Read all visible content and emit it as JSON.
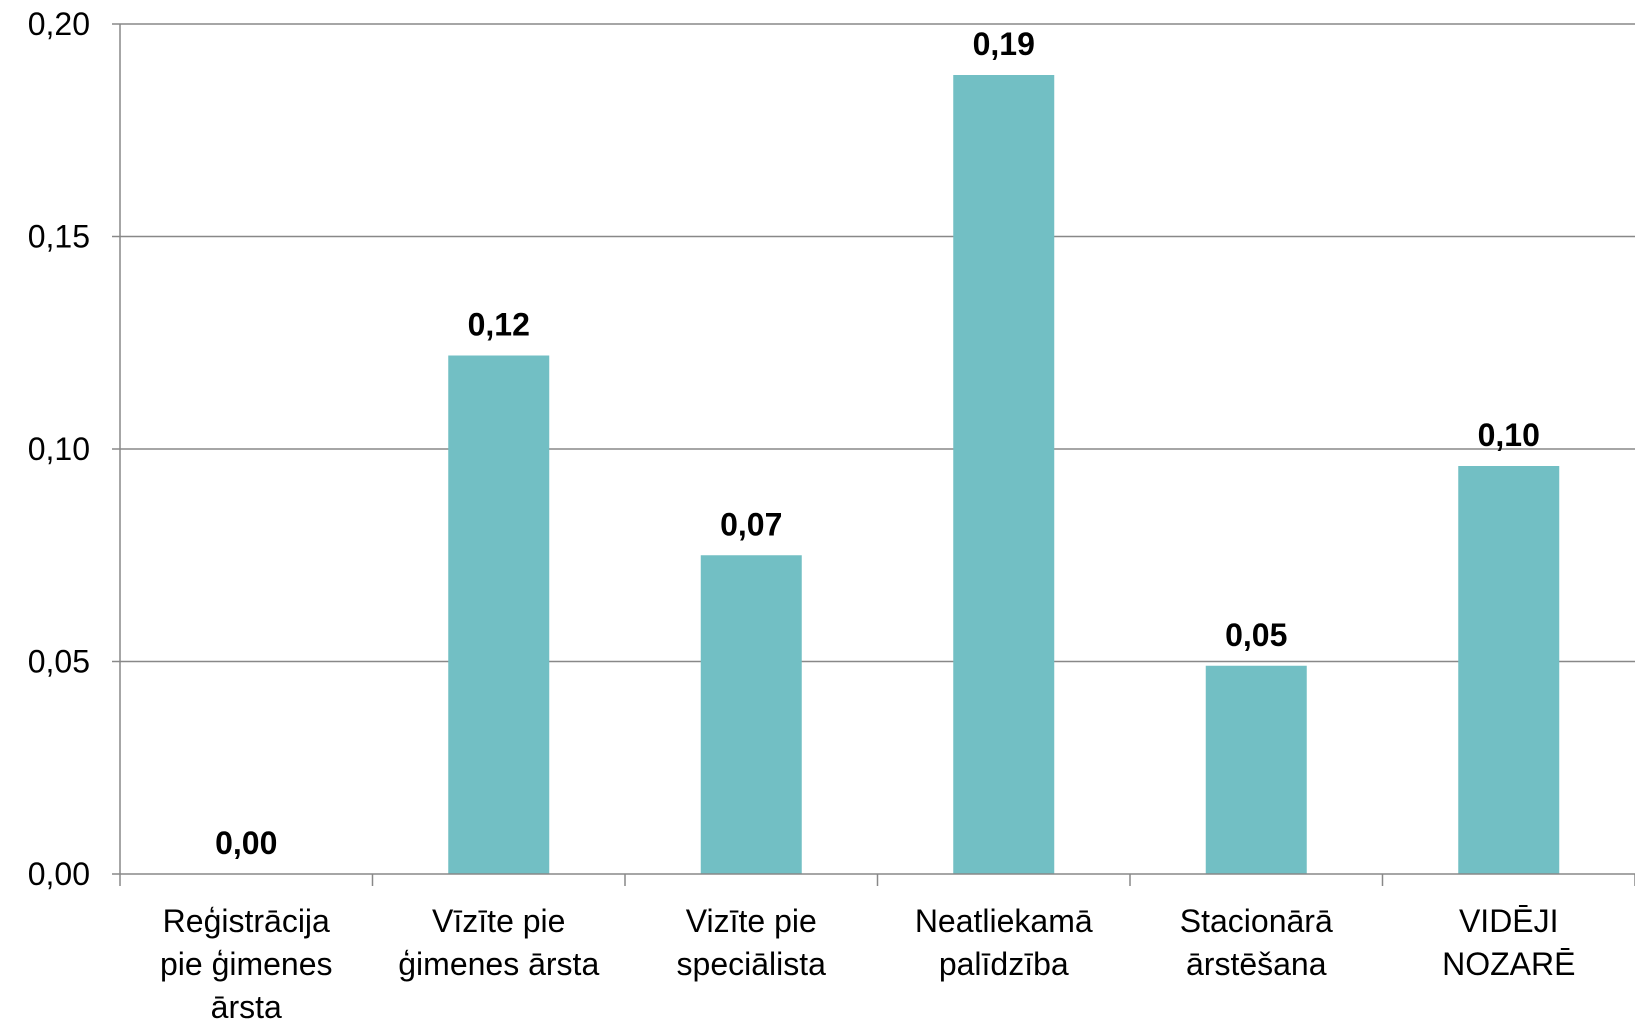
{
  "chart_data": {
    "type": "bar",
    "categories": [
      [
        "Reģistrācija",
        "pie ģimenes",
        "ārsta"
      ],
      [
        "Vīzīte pie",
        "ģimenes ārsta"
      ],
      [
        "Vizīte pie",
        "speciālista"
      ],
      [
        "Neatliekamā",
        "palīdzība"
      ],
      [
        "Stacionārā",
        "ārstēšana"
      ],
      [
        "VIDĒJI",
        "NOZARĒ"
      ]
    ],
    "values": [
      0.0,
      0.122,
      0.075,
      0.188,
      0.049,
      0.096
    ],
    "data_labels": [
      "0,00",
      "0,12",
      "0,07",
      "0,19",
      "0,05",
      "0,10"
    ],
    "y_ticks": [
      0.0,
      0.05,
      0.1,
      0.15,
      0.2
    ],
    "y_tick_labels": [
      "0,00",
      "0,05",
      "0,10",
      "0,15",
      "0,20"
    ],
    "ylim": [
      0,
      0.2
    ],
    "grid": true,
    "legend": "none",
    "colors": {
      "bar": "#72bfc4",
      "grid": "#888888",
      "axis": "#888888"
    }
  }
}
